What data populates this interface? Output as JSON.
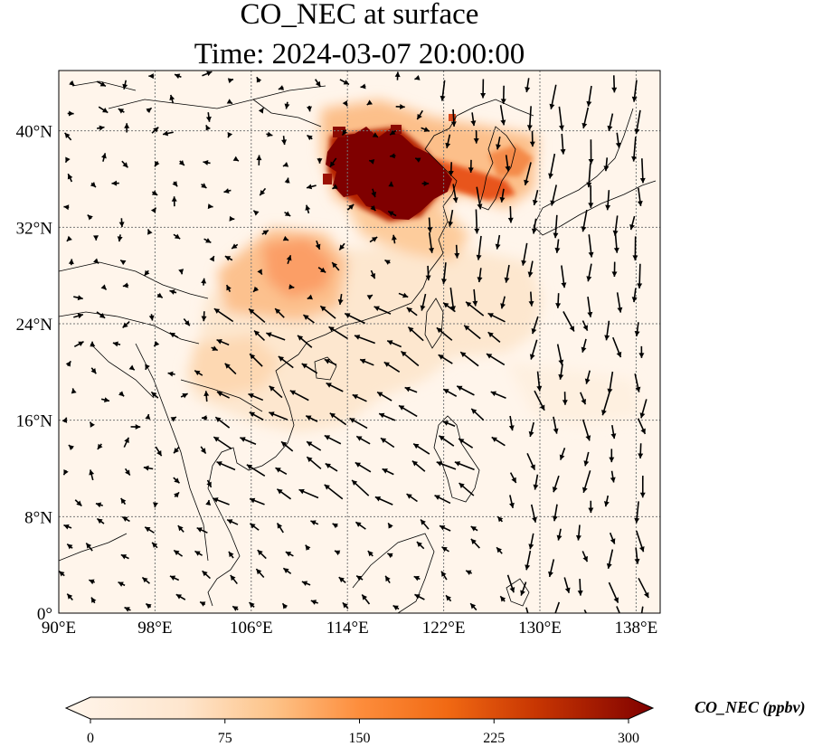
{
  "title": "CO_NEC at surface",
  "subtitle": "Time: 2024-03-07 20:00:00",
  "map": {
    "lon_range": [
      90,
      140
    ],
    "lat_range": [
      0,
      45
    ],
    "lon_ticks": [
      {
        "value": 90,
        "label": "90°E"
      },
      {
        "value": 98,
        "label": "98°E"
      },
      {
        "value": 106,
        "label": "106°E"
      },
      {
        "value": 114,
        "label": "114°E"
      },
      {
        "value": 122,
        "label": "122°E"
      },
      {
        "value": 130,
        "label": "130°E"
      },
      {
        "value": 138,
        "label": "138°E"
      }
    ],
    "lat_ticks": [
      {
        "value": 0,
        "label": "0°"
      },
      {
        "value": 8,
        "label": "8°N"
      },
      {
        "value": 16,
        "label": "16°N"
      },
      {
        "value": 24,
        "label": "24°N"
      },
      {
        "value": 32,
        "label": "32°N"
      },
      {
        "value": 40,
        "label": "40°N"
      }
    ],
    "gridlines": true,
    "background_color": "#fff5eb",
    "coastline_color": "#000000"
  },
  "colorbar": {
    "label": "CO_NEC (ppbv)",
    "min": 0,
    "max": 300,
    "extend": "both",
    "ticks": [
      {
        "value": 0,
        "label": "0"
      },
      {
        "value": 75,
        "label": "75"
      },
      {
        "value": 150,
        "label": "150"
      },
      {
        "value": 225,
        "label": "225"
      },
      {
        "value": 300,
        "label": "300"
      }
    ],
    "colormap": [
      "#fff5eb",
      "#fdd9b4",
      "#fdab67",
      "#f3701b",
      "#c83602",
      "#7f2704"
    ]
  }
}
